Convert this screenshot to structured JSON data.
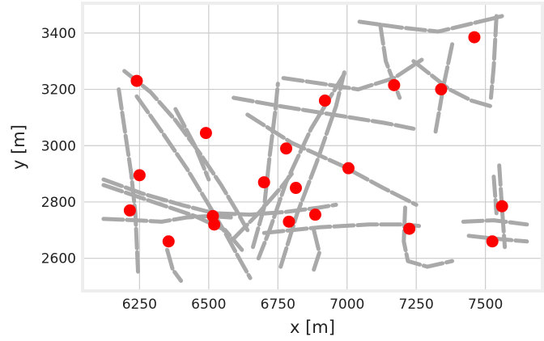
{
  "chart_data": {
    "type": "scatter",
    "title": "",
    "xlabel": "x [m]",
    "ylabel": "y [m]",
    "xlim": [
      6050,
      7700
    ],
    "ylim": [
      2490,
      3500
    ],
    "xticks": [
      6250,
      6500,
      6750,
      7000,
      7250,
      7500
    ],
    "yticks": [
      2600,
      2800,
      3000,
      3200,
      3400
    ],
    "xtick_labels": [
      "6250",
      "6500",
      "6750",
      "7000",
      "7250",
      "7500"
    ],
    "ytick_labels": [
      "2600",
      "2800",
      "3000",
      "3200",
      "3400"
    ],
    "grid": true,
    "colors": {
      "points": "#ff0000",
      "roads": "#a9a9a9",
      "grid": "#cccccc",
      "frame": "#eeeeee"
    },
    "points": [
      {
        "x": 6240,
        "y": 3230
      },
      {
        "x": 7460,
        "y": 3385
      },
      {
        "x": 7170,
        "y": 3215
      },
      {
        "x": 7340,
        "y": 3200
      },
      {
        "x": 6920,
        "y": 3160
      },
      {
        "x": 6490,
        "y": 3045
      },
      {
        "x": 6780,
        "y": 2990
      },
      {
        "x": 7005,
        "y": 2920
      },
      {
        "x": 6250,
        "y": 2895
      },
      {
        "x": 6700,
        "y": 2870
      },
      {
        "x": 6815,
        "y": 2850
      },
      {
        "x": 7560,
        "y": 2785
      },
      {
        "x": 6215,
        "y": 2770
      },
      {
        "x": 6885,
        "y": 2755
      },
      {
        "x": 6515,
        "y": 2750
      },
      {
        "x": 6790,
        "y": 2730
      },
      {
        "x": 6520,
        "y": 2720
      },
      {
        "x": 7225,
        "y": 2705
      },
      {
        "x": 6355,
        "y": 2660
      },
      {
        "x": 7525,
        "y": 2660
      }
    ],
    "road_segments": [
      [
        [
          6195,
          3265
        ],
        [
          6290,
          3190
        ],
        [
          6380,
          3090
        ],
        [
          6470,
          2970
        ],
        [
          6545,
          2860
        ],
        [
          6600,
          2770
        ],
        [
          6640,
          2700
        ]
      ],
      [
        [
          6240,
          3175
        ],
        [
          6330,
          3050
        ],
        [
          6420,
          2920
        ],
        [
          6500,
          2790
        ],
        [
          6560,
          2690
        ],
        [
          6610,
          2600
        ],
        [
          6650,
          2530
        ]
      ],
      [
        [
          6175,
          3200
        ],
        [
          6220,
          2900
        ],
        [
          6235,
          2760
        ],
        [
          6245,
          2540
        ]
      ],
      [
        [
          6120,
          2880
        ],
        [
          6260,
          2830
        ],
        [
          6400,
          2790
        ],
        [
          6520,
          2760
        ],
        [
          6650,
          2755
        ],
        [
          6780,
          2765
        ],
        [
          6900,
          2780
        ],
        [
          6960,
          2790
        ]
      ],
      [
        [
          6120,
          2860
        ],
        [
          6300,
          2800
        ],
        [
          6450,
          2750
        ],
        [
          6560,
          2700
        ],
        [
          6620,
          2630
        ]
      ],
      [
        [
          6590,
          2670
        ],
        [
          6680,
          2760
        ],
        [
          6760,
          2850
        ],
        [
          6800,
          2900
        ]
      ],
      [
        [
          6120,
          2740
        ],
        [
          6240,
          2735
        ],
        [
          6330,
          2730
        ],
        [
          6420,
          2745
        ],
        [
          6500,
          2750
        ],
        [
          6580,
          2745
        ]
      ],
      [
        [
          6660,
          2640
        ],
        [
          6700,
          2780
        ],
        [
          6720,
          2960
        ],
        [
          6740,
          3120
        ],
        [
          6750,
          3220
        ]
      ],
      [
        [
          6990,
          3255
        ],
        [
          6870,
          3060
        ],
        [
          6780,
          2870
        ],
        [
          6720,
          2700
        ],
        [
          6680,
          2600
        ]
      ],
      [
        [
          6760,
          2570
        ],
        [
          6820,
          2760
        ],
        [
          6890,
          2940
        ],
        [
          6960,
          3140
        ],
        [
          6990,
          3260
        ]
      ],
      [
        [
          6640,
          3110
        ],
        [
          6800,
          3010
        ],
        [
          6980,
          2930
        ],
        [
          7130,
          2850
        ],
        [
          7250,
          2790
        ]
      ],
      [
        [
          6590,
          3170
        ],
        [
          6760,
          3140
        ],
        [
          6950,
          3110
        ],
        [
          7140,
          3080
        ],
        [
          7240,
          3060
        ]
      ],
      [
        [
          6770,
          3240
        ],
        [
          6910,
          3220
        ],
        [
          7040,
          3200
        ],
        [
          7170,
          3240
        ],
        [
          7270,
          3305
        ]
      ],
      [
        [
          7240,
          3300
        ],
        [
          7370,
          3200
        ],
        [
          7450,
          3160
        ],
        [
          7520,
          3140
        ]
      ],
      [
        [
          7045,
          3440
        ],
        [
          7190,
          3420
        ],
        [
          7330,
          3405
        ],
        [
          7520,
          3450
        ],
        [
          7560,
          3460
        ]
      ],
      [
        [
          7120,
          3430
        ],
        [
          7140,
          3300
        ],
        [
          7190,
          3170
        ]
      ],
      [
        [
          7540,
          3460
        ],
        [
          7530,
          3280
        ],
        [
          7520,
          3170
        ]
      ],
      [
        [
          7380,
          3360
        ],
        [
          7350,
          3220
        ],
        [
          7320,
          3050
        ]
      ],
      [
        [
          6700,
          2690
        ],
        [
          6900,
          2710
        ],
        [
          7080,
          2720
        ],
        [
          7200,
          2720
        ],
        [
          7260,
          2715
        ]
      ],
      [
        [
          7210,
          2780
        ],
        [
          7205,
          2660
        ],
        [
          7220,
          2590
        ],
        [
          7290,
          2570
        ],
        [
          7380,
          2590
        ]
      ],
      [
        [
          7420,
          2730
        ],
        [
          7530,
          2735
        ],
        [
          7650,
          2720
        ]
      ],
      [
        [
          7440,
          2680
        ],
        [
          7530,
          2670
        ],
        [
          7650,
          2660
        ]
      ],
      [
        [
          7550,
          2930
        ],
        [
          7560,
          2780
        ],
        [
          7570,
          2640
        ]
      ],
      [
        [
          7530,
          2890
        ],
        [
          7540,
          2760
        ]
      ],
      [
        [
          6380,
          3130
        ],
        [
          6450,
          3000
        ],
        [
          6500,
          2880
        ]
      ],
      [
        [
          6880,
          2700
        ],
        [
          6900,
          2620
        ],
        [
          6880,
          2560
        ]
      ],
      [
        [
          6350,
          2630
        ],
        [
          6370,
          2560
        ],
        [
          6400,
          2520
        ]
      ]
    ]
  }
}
